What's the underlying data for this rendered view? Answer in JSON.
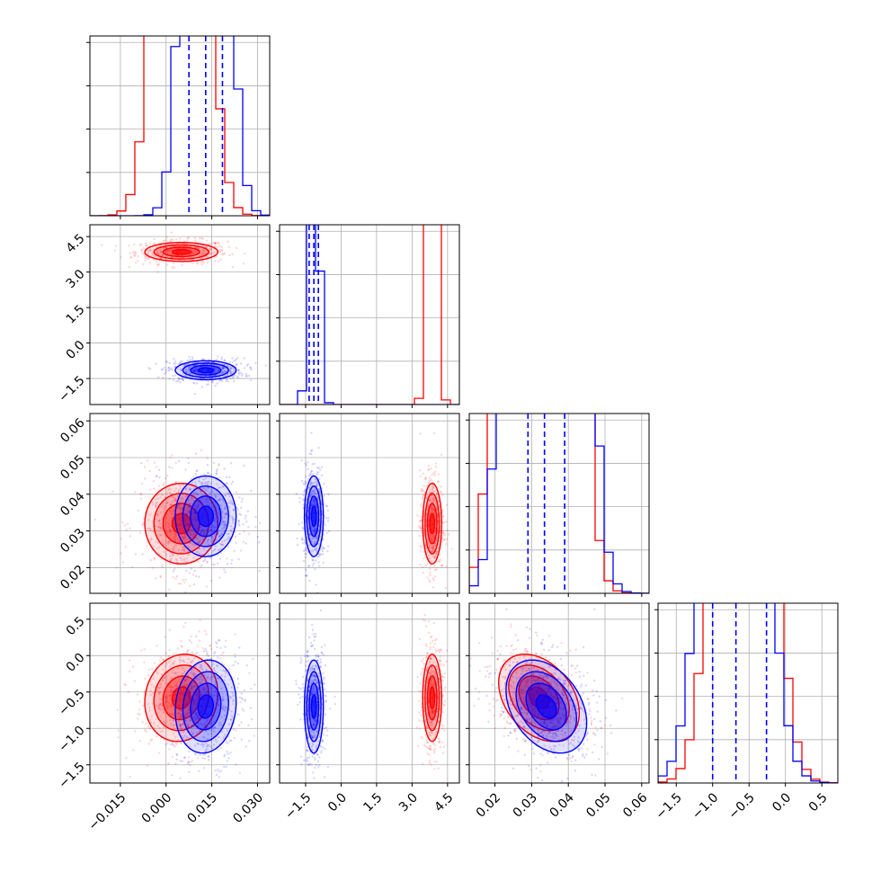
{
  "colors": {
    "series_a": "#ff0000",
    "series_b": "#0000ff",
    "grid": "#b0b0b0"
  },
  "chart_data": {
    "type": "corner",
    "grid": true,
    "parameters": [
      {
        "range": [
          -0.025,
          0.034
        ],
        "ticks": [
          -0.015,
          0.0,
          0.015,
          0.03
        ],
        "tick_labels": [
          "−0.015",
          "0.000",
          "0.015",
          "0.030"
        ]
      },
      {
        "range": [
          -2.6,
          5.0
        ],
        "ticks": [
          -1.5,
          0.0,
          1.5,
          3.0,
          4.5
        ],
        "tick_labels": [
          "−1.5",
          "0.0",
          "1.5",
          "3.0",
          "4.5"
        ]
      },
      {
        "range": [
          0.013,
          0.062
        ],
        "ticks": [
          0.02,
          0.03,
          0.04,
          0.05,
          0.06
        ],
        "tick_labels": [
          "0.02",
          "0.03",
          "0.04",
          "0.05",
          "0.06"
        ]
      },
      {
        "range": [
          -1.75,
          0.72
        ],
        "ticks": [
          -1.5,
          -1.0,
          -0.5,
          0.0,
          0.5
        ],
        "tick_labels": [
          "−1.5",
          "−1.0",
          "−0.5",
          "0.0",
          "0.5"
        ]
      }
    ],
    "series": [
      {
        "color": "#ff0000",
        "mean": [
          0.005,
          3.85,
          0.032,
          -0.58
        ],
        "sd": [
          0.006,
          0.2,
          0.0055,
          0.3
        ],
        "corr": [
          [
            2,
            3,
            -0.35
          ],
          [
            0,
            3,
            0.1
          ]
        ]
      },
      {
        "color": "#0000ff",
        "mean": [
          0.013,
          -1.15,
          0.034,
          -0.7
        ],
        "sd": [
          0.005,
          0.2,
          0.0055,
          0.32
        ],
        "corr": [
          [
            2,
            3,
            -0.35
          ],
          [
            0,
            3,
            0.1
          ]
        ]
      }
    ],
    "quantile_lines": {
      "color": "#0000ff",
      "values": [
        [
          0.0075,
          0.013,
          0.0185
        ],
        [
          -1.35,
          -1.15,
          -0.96
        ],
        [
          0.029,
          0.0335,
          0.039
        ],
        [
          -1.0,
          -0.68,
          -0.26
        ]
      ]
    },
    "diag_hist_max": [
      0.0335,
      0.43,
      0.0065,
      0.0325
    ]
  }
}
